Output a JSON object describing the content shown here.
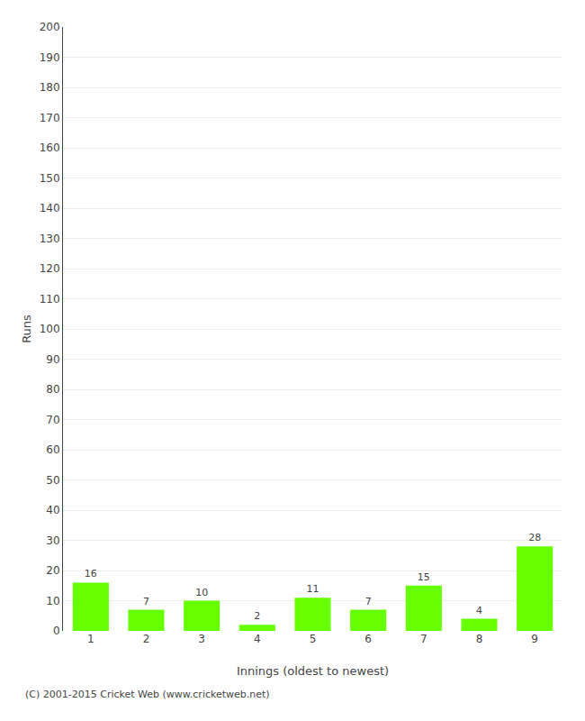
{
  "chart_data": {
    "type": "bar",
    "xlabel": "Innings (oldest to newest)",
    "ylabel": "Runs",
    "categories": [
      "1",
      "2",
      "3",
      "4",
      "5",
      "6",
      "7",
      "8",
      "9"
    ],
    "values": [
      16,
      7,
      10,
      2,
      11,
      7,
      15,
      4,
      28
    ],
    "color": "#66ff00",
    "ylim": [
      0,
      200
    ],
    "yticks": [
      0,
      10,
      20,
      30,
      40,
      50,
      60,
      70,
      80,
      90,
      100,
      110,
      120,
      130,
      140,
      150,
      160,
      170,
      180,
      190,
      200
    ],
    "grid": true,
    "data_labels": true,
    "annotations": [
      "(C) 2001-2015 Cricket Web (www.cricketweb.net)"
    ]
  }
}
